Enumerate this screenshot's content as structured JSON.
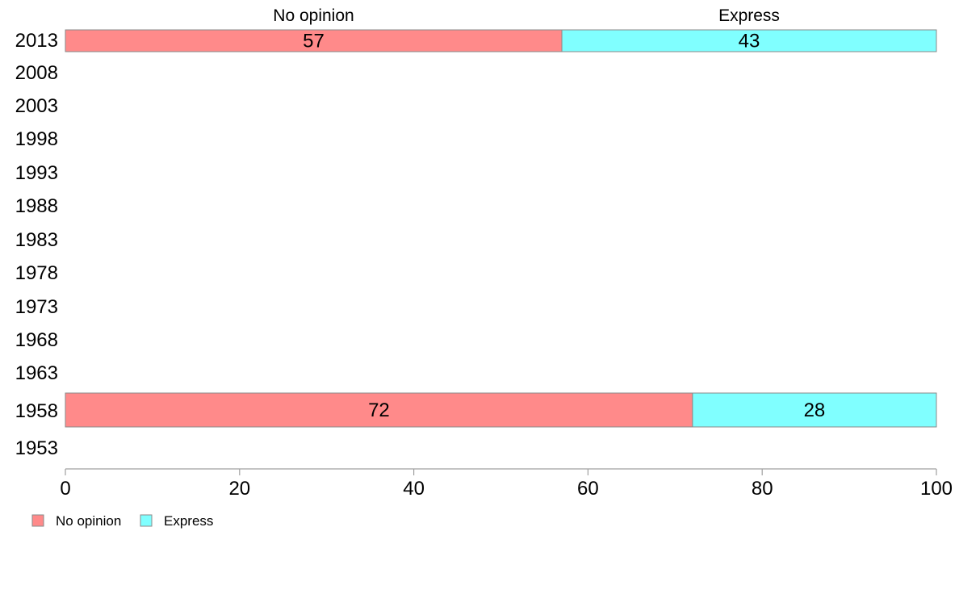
{
  "chart_data": {
    "type": "bar",
    "orientation": "horizontal",
    "stacked": true,
    "categories": [
      "2013",
      "2008",
      "2003",
      "1998",
      "1993",
      "1988",
      "1983",
      "1978",
      "1973",
      "1968",
      "1963",
      "1958",
      "1953"
    ],
    "series": [
      {
        "name": "No opinion",
        "color": "#FF8A8A",
        "values": [
          57,
          null,
          null,
          null,
          null,
          null,
          null,
          null,
          null,
          null,
          null,
          72,
          null
        ]
      },
      {
        "name": "Express",
        "color": "#80FFFF",
        "values": [
          43,
          null,
          null,
          null,
          null,
          null,
          null,
          null,
          null,
          null,
          null,
          28,
          null
        ]
      }
    ],
    "xlim": [
      0,
      100
    ],
    "xticks": [
      0,
      20,
      40,
      60,
      80,
      100
    ],
    "grid": false,
    "legend_position": "bottom-left",
    "top_labels": [
      "No opinion",
      "Express"
    ]
  }
}
